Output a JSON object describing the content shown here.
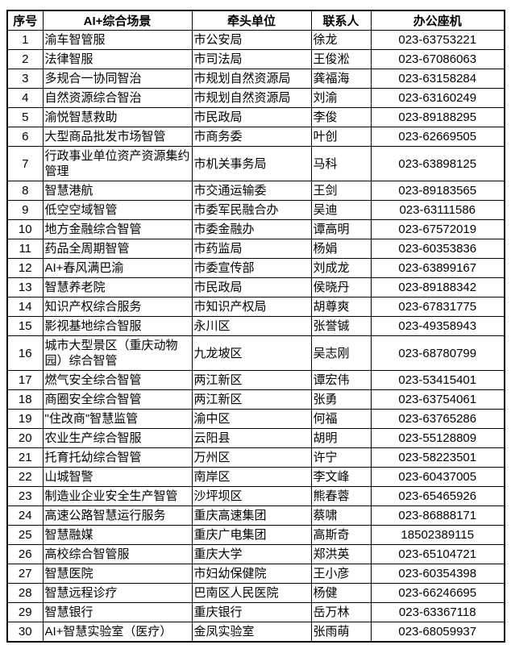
{
  "colors": {
    "border": "#000000",
    "text": "#000000",
    "background": "#ffffff"
  },
  "table": {
    "headers": [
      "序号",
      "AI+综合场景",
      "牵头单位",
      "联系人",
      "办公座机"
    ],
    "rows": [
      {
        "no": "1",
        "scenario": "渝车智管服",
        "unit": "市公安局",
        "contact": "徐龙",
        "phone": "023-63753221"
      },
      {
        "no": "2",
        "scenario": "法律智服",
        "unit": "市司法局",
        "contact": "王俊淞",
        "phone": "023-67086063"
      },
      {
        "no": "3",
        "scenario": "多规合一协同智治",
        "unit": "市规划自然资源局",
        "contact": "龚福海",
        "phone": "023-63158284"
      },
      {
        "no": "4",
        "scenario": "自然资源综合智治",
        "unit": "市规划自然资源局",
        "contact": "刘渝",
        "phone": "023-63160249"
      },
      {
        "no": "5",
        "scenario": "渝悦智慧救助",
        "unit": "市民政局",
        "contact": "李俊",
        "phone": "023-89188295"
      },
      {
        "no": "6",
        "scenario": "大型商品批发市场智管",
        "unit": "市商务委",
        "contact": "叶创",
        "phone": "023-62669505"
      },
      {
        "no": "7",
        "scenario": "行政事业单位资产资源集约管理",
        "unit": "市机关事务局",
        "contact": "马科",
        "phone": "023-63898125"
      },
      {
        "no": "8",
        "scenario": "智慧港航",
        "unit": "市交通运输委",
        "contact": "王剑",
        "phone": "023-89183565"
      },
      {
        "no": "9",
        "scenario": "低空空域智管",
        "unit": "市委军民融合办",
        "contact": "吴迪",
        "phone": "023-63111586"
      },
      {
        "no": "10",
        "scenario": "地方金融综合智管",
        "unit": "市委金融办",
        "contact": "谭高明",
        "phone": "023-67572019"
      },
      {
        "no": "11",
        "scenario": "药品全周期智管",
        "unit": "市药监局",
        "contact": "杨娟",
        "phone": "023-60353836"
      },
      {
        "no": "12",
        "scenario": "AI+春风满巴渝",
        "unit": "市委宣传部",
        "contact": "刘成龙",
        "phone": "023-63899167"
      },
      {
        "no": "13",
        "scenario": "智慧养老院",
        "unit": "市民政局",
        "contact": "侯晓丹",
        "phone": "023-89188342"
      },
      {
        "no": "14",
        "scenario": "知识产权综合服务",
        "unit": "市知识产权局",
        "contact": "胡尊爽",
        "phone": "023-67831775"
      },
      {
        "no": "15",
        "scenario": "影视基地综合智服",
        "unit": "永川区",
        "contact": "张誉铖",
        "phone": "023-49358943"
      },
      {
        "no": "16",
        "scenario": "城市大型景区（重庆动物园）综合智管",
        "unit": "九龙坡区",
        "contact": "吴志刚",
        "phone": "023-68780799"
      },
      {
        "no": "17",
        "scenario": "燃气安全综合智管",
        "unit": "两江新区",
        "contact": "谭宏伟",
        "phone": "023-53415401"
      },
      {
        "no": "18",
        "scenario": "商圈安全综合智管",
        "unit": "两江新区",
        "contact": "张勇",
        "phone": "023-63754061"
      },
      {
        "no": "19",
        "scenario": "\"住改商\"智慧监管",
        "unit": "渝中区",
        "contact": "何福",
        "phone": "023-63765286"
      },
      {
        "no": "20",
        "scenario": "农业生产综合智服",
        "unit": "云阳县",
        "contact": "胡明",
        "phone": "023-55128809"
      },
      {
        "no": "21",
        "scenario": "托育托幼综合智管",
        "unit": "万州区",
        "contact": "许宁",
        "phone": "023-58223501"
      },
      {
        "no": "22",
        "scenario": "山城智警",
        "unit": "南岸区",
        "contact": "李文峰",
        "phone": "023-60437005"
      },
      {
        "no": "23",
        "scenario": "制造业企业安全生产智管",
        "unit": "沙坪坝区",
        "contact": "熊春蓉",
        "phone": "023-65465926"
      },
      {
        "no": "24",
        "scenario": "高速公路智慧运行服务",
        "unit": "重庆高速集团",
        "contact": "蔡啸",
        "phone": "023-86888171"
      },
      {
        "no": "25",
        "scenario": "智慧融媒",
        "unit": "重庆广电集团",
        "contact": "高斯奇",
        "phone": "18502389115"
      },
      {
        "no": "26",
        "scenario": "高校综合智管服",
        "unit": "重庆大学",
        "contact": "郑洪英",
        "phone": "023-65104721"
      },
      {
        "no": "27",
        "scenario": "智慧医院",
        "unit": "市妇幼保健院",
        "contact": "王小彦",
        "phone": "023-60354398"
      },
      {
        "no": "28",
        "scenario": "智慧远程诊疗",
        "unit": "巴南区人民医院",
        "contact": "杨健",
        "phone": "023-66246695"
      },
      {
        "no": "29",
        "scenario": "智慧银行",
        "unit": "重庆银行",
        "contact": "岳万林",
        "phone": "023-63367118"
      },
      {
        "no": "30",
        "scenario": "AI+智慧实验室（医疗）",
        "unit": "金凤实验室",
        "contact": "张雨萌",
        "phone": "023-68059937"
      }
    ]
  }
}
